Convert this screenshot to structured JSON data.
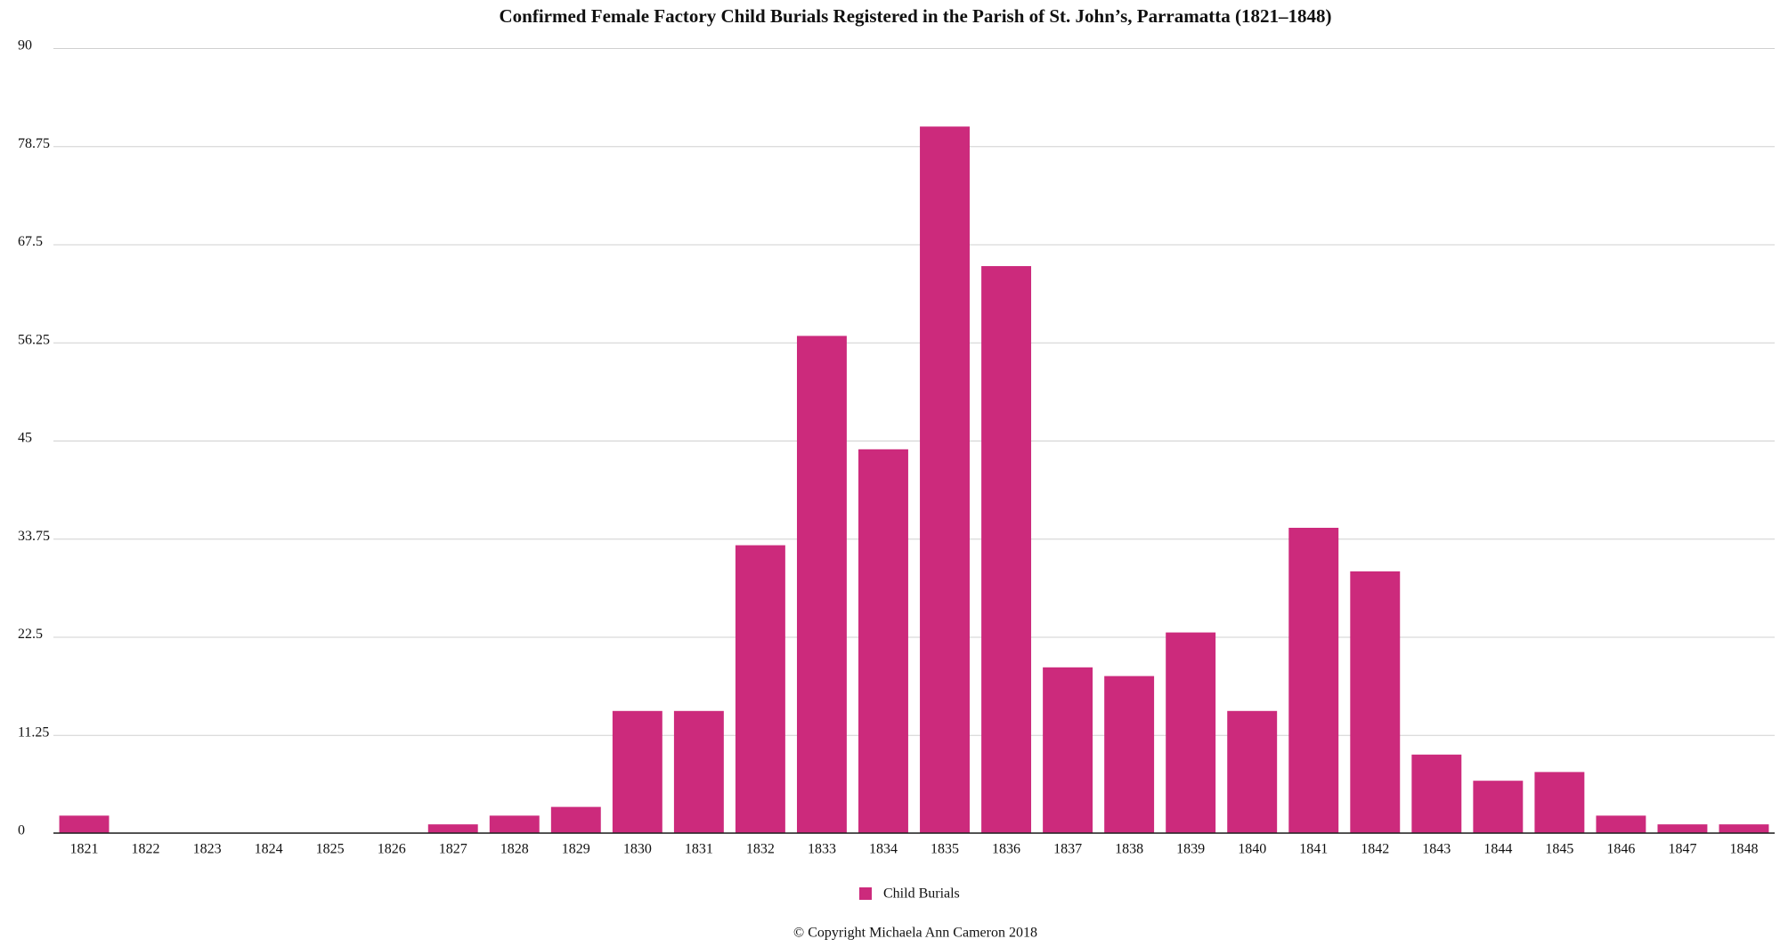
{
  "chart_data": {
    "type": "bar",
    "title": "Confirmed Female Factory Child Burials Registered in the Parish of St. John’s, Parramatta (1821–1848)",
    "categories": [
      "1821",
      "1822",
      "1823",
      "1824",
      "1825",
      "1826",
      "1827",
      "1828",
      "1829",
      "1830",
      "1831",
      "1832",
      "1833",
      "1834",
      "1835",
      "1836",
      "1837",
      "1838",
      "1839",
      "1840",
      "1841",
      "1842",
      "1843",
      "1844",
      "1845",
      "1846",
      "1847",
      "1848"
    ],
    "series": [
      {
        "name": "Child Burials",
        "color": "#cc2a7c",
        "values": [
          2,
          0,
          0,
          0,
          0,
          0,
          1,
          2,
          3,
          14,
          14,
          33,
          57,
          44,
          81,
          65,
          19,
          18,
          23,
          14,
          35,
          30,
          9,
          6,
          7,
          2,
          1,
          1
        ]
      }
    ],
    "ylim": [
      0,
      90
    ],
    "yticks": [
      0,
      11.25,
      22.5,
      33.75,
      45,
      56.25,
      67.5,
      78.75,
      90
    ],
    "grid": true,
    "legend": "bottom",
    "source": "© Copyright Michaela Ann Cameron 2018"
  }
}
